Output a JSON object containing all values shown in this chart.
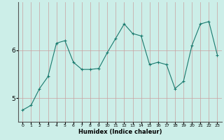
{
  "x": [
    0,
    1,
    2,
    3,
    4,
    5,
    6,
    7,
    8,
    9,
    10,
    11,
    12,
    13,
    14,
    15,
    16,
    17,
    18,
    19,
    20,
    21,
    22,
    23
  ],
  "y": [
    4.75,
    4.85,
    5.2,
    5.45,
    6.15,
    6.2,
    5.75,
    5.6,
    5.6,
    5.62,
    5.95,
    6.25,
    6.55,
    6.35,
    6.3,
    5.7,
    5.75,
    5.7,
    5.2,
    5.35,
    6.1,
    6.55,
    6.6,
    5.9
  ],
  "xlabel": "Humidex (Indice chaleur)",
  "ylim": [
    4.5,
    7.0
  ],
  "xlim": [
    -0.5,
    23.5
  ],
  "yticks": [
    5,
    6
  ],
  "xtick_labels": [
    "0",
    "1",
    "2",
    "3",
    "4",
    "5",
    "6",
    "7",
    "8",
    "9",
    "10",
    "11",
    "12",
    "13",
    "14",
    "15",
    "16",
    "17",
    "18",
    "19",
    "20",
    "21",
    "22",
    "23"
  ],
  "line_color": "#1a7a6e",
  "marker": "+",
  "bg_color": "#cceee8",
  "vgrid_color": "#c8a0a0",
  "hgrid_color": "#c8a0a0"
}
